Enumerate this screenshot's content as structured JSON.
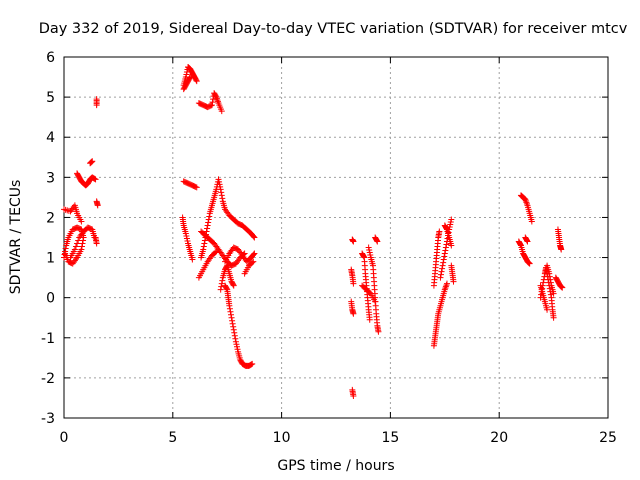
{
  "chart_data": {
    "type": "scatter",
    "title": "Day 332 of 2019, Sidereal Day-to-day VTEC variation (SDTVAR) for receiver mtcv",
    "xlabel": "GPS time / hours",
    "ylabel": "SDTVAR / TECUs",
    "xlim": [
      0,
      25
    ],
    "ylim": [
      -3,
      6
    ],
    "xticks": [
      0,
      5,
      10,
      15,
      20,
      25
    ],
    "yticks": [
      -3,
      -2,
      -1,
      0,
      1,
      2,
      3,
      4,
      5,
      6
    ],
    "xtick_labels": [
      "0",
      "5",
      "10",
      "15",
      "20",
      "25"
    ],
    "ytick_labels": [
      "-3",
      "-2",
      "-1",
      "0",
      "1",
      "2",
      "3",
      "4",
      "5",
      "6"
    ],
    "grid": true,
    "marker": "plus",
    "color": "#ff0000",
    "series": [
      {
        "name": "SDTVAR",
        "tracks": [
          [
            [
              0.0,
              2.2
            ],
            [
              0.3,
              2.15
            ],
            [
              0.5,
              2.3
            ],
            [
              0.6,
              2.1
            ],
            [
              0.8,
              1.9
            ]
          ],
          [
            [
              0.0,
              1.0
            ],
            [
              0.1,
              1.3
            ],
            [
              0.2,
              1.5
            ],
            [
              0.4,
              1.7
            ],
            [
              0.6,
              1.75
            ],
            [
              0.8,
              1.7
            ],
            [
              0.9,
              1.5
            ],
            [
              0.8,
              1.2
            ],
            [
              0.6,
              1.0
            ],
            [
              0.4,
              0.85
            ],
            [
              0.2,
              0.9
            ],
            [
              0.05,
              1.1
            ]
          ],
          [
            [
              0.3,
              1.0
            ],
            [
              0.5,
              1.2
            ],
            [
              0.7,
              1.5
            ],
            [
              0.9,
              1.65
            ],
            [
              1.1,
              1.75
            ],
            [
              1.3,
              1.7
            ],
            [
              1.4,
              1.5
            ]
          ],
          [
            [
              0.6,
              3.1
            ],
            [
              0.7,
              3.0
            ],
            [
              0.8,
              2.9
            ],
            [
              0.9,
              2.85
            ],
            [
              1.0,
              2.8
            ],
            [
              1.1,
              2.85
            ],
            [
              1.2,
              2.95
            ],
            [
              1.3,
              3.0
            ],
            [
              1.45,
              2.95
            ]
          ],
          [
            [
              1.2,
              3.35
            ],
            [
              1.3,
              3.4
            ]
          ],
          [
            [
              1.5,
              2.4
            ],
            [
              1.55,
              2.3
            ]
          ],
          [
            [
              1.45,
              1.5
            ],
            [
              1.5,
              1.35
            ]
          ],
          [
            [
              1.5,
              4.8
            ],
            [
              1.5,
              4.95
            ]
          ],
          [
            [
              5.5,
              5.3
            ],
            [
              5.6,
              5.5
            ],
            [
              5.7,
              5.75
            ],
            [
              5.8,
              5.7
            ],
            [
              5.9,
              5.6
            ],
            [
              6.0,
              5.5
            ],
            [
              6.1,
              5.4
            ]
          ],
          [
            [
              5.5,
              5.2
            ],
            [
              5.6,
              5.3
            ],
            [
              5.7,
              5.4
            ],
            [
              5.8,
              5.5
            ]
          ],
          [
            [
              6.2,
              4.85
            ],
            [
              6.4,
              4.8
            ],
            [
              6.6,
              4.75
            ],
            [
              6.8,
              4.8
            ],
            [
              6.9,
              5.1
            ],
            [
              7.0,
              5.0
            ],
            [
              7.1,
              4.85
            ],
            [
              7.25,
              4.65
            ]
          ],
          [
            [
              5.5,
              2.9
            ],
            [
              5.7,
              2.85
            ],
            [
              5.9,
              2.8
            ],
            [
              6.1,
              2.75
            ]
          ],
          [
            [
              5.45,
              2.0
            ],
            [
              5.5,
              1.8
            ],
            [
              5.6,
              1.6
            ],
            [
              5.7,
              1.35
            ],
            [
              5.8,
              1.15
            ],
            [
              5.9,
              0.95
            ]
          ],
          [
            [
              6.3,
              1.65
            ],
            [
              6.5,
              1.55
            ],
            [
              6.7,
              1.45
            ],
            [
              6.9,
              1.35
            ],
            [
              7.1,
              1.2
            ],
            [
              7.3,
              1.05
            ],
            [
              7.5,
              0.9
            ],
            [
              7.7,
              0.8
            ],
            [
              7.9,
              0.85
            ],
            [
              8.1,
              1.0
            ],
            [
              8.3,
              1.1
            ]
          ],
          [
            [
              6.3,
              1.0
            ],
            [
              6.4,
              1.2
            ],
            [
              6.5,
              1.5
            ],
            [
              6.6,
              1.8
            ],
            [
              6.7,
              2.1
            ],
            [
              6.8,
              2.3
            ],
            [
              6.9,
              2.5
            ],
            [
              7.0,
              2.7
            ],
            [
              7.1,
              2.95
            ],
            [
              7.2,
              2.7
            ],
            [
              7.3,
              2.4
            ],
            [
              7.4,
              2.2
            ],
            [
              7.6,
              2.05
            ],
            [
              7.8,
              1.95
            ],
            [
              8.0,
              1.85
            ],
            [
              8.2,
              1.8
            ],
            [
              8.4,
              1.7
            ],
            [
              8.6,
              1.6
            ],
            [
              8.75,
              1.5
            ]
          ],
          [
            [
              6.2,
              0.5
            ],
            [
              6.4,
              0.7
            ],
            [
              6.6,
              0.9
            ],
            [
              6.8,
              1.05
            ],
            [
              7.0,
              1.15
            ]
          ],
          [
            [
              7.2,
              0.2
            ],
            [
              7.3,
              0.5
            ],
            [
              7.4,
              0.7
            ],
            [
              7.5,
              0.8
            ],
            [
              7.6,
              0.6
            ],
            [
              7.7,
              0.4
            ],
            [
              7.8,
              0.3
            ]
          ],
          [
            [
              7.4,
              0.9
            ],
            [
              7.6,
              1.1
            ],
            [
              7.8,
              1.25
            ],
            [
              8.0,
              1.2
            ],
            [
              8.2,
              1.05
            ],
            [
              8.4,
              0.9
            ],
            [
              8.6,
              1.0
            ],
            [
              8.75,
              1.1
            ]
          ],
          [
            [
              7.4,
              0.3
            ],
            [
              7.5,
              0.2
            ],
            [
              7.55,
              0.0
            ],
            [
              7.6,
              -0.2
            ],
            [
              7.7,
              -0.5
            ],
            [
              7.8,
              -0.8
            ],
            [
              7.9,
              -1.1
            ],
            [
              8.0,
              -1.35
            ],
            [
              8.1,
              -1.55
            ],
            [
              8.2,
              -1.65
            ],
            [
              8.35,
              -1.7
            ],
            [
              8.5,
              -1.7
            ],
            [
              8.65,
              -1.65
            ]
          ],
          [
            [
              8.3,
              0.6
            ],
            [
              8.5,
              0.8
            ],
            [
              8.7,
              0.9
            ]
          ],
          [
            [
              13.25,
              1.45
            ],
            [
              13.3,
              1.4
            ]
          ],
          [
            [
              13.2,
              0.7
            ],
            [
              13.25,
              0.55
            ],
            [
              13.3,
              0.35
            ]
          ],
          [
            [
              13.2,
              -0.1
            ],
            [
              13.25,
              -0.3
            ],
            [
              13.3,
              -0.4
            ]
          ],
          [
            [
              13.25,
              -2.3
            ],
            [
              13.3,
              -2.45
            ]
          ],
          [
            [
              13.7,
              1.1
            ],
            [
              13.8,
              1.0
            ],
            [
              13.85,
              0.6
            ],
            [
              13.9,
              0.3
            ],
            [
              13.95,
              0.0
            ],
            [
              14.0,
              -0.3
            ],
            [
              14.05,
              -0.55
            ]
          ],
          [
            [
              14.0,
              1.25
            ],
            [
              14.1,
              1.0
            ],
            [
              14.2,
              0.8
            ],
            [
              14.25,
              0.4
            ],
            [
              14.3,
              0.0
            ],
            [
              14.35,
              -0.4
            ],
            [
              14.4,
              -0.7
            ],
            [
              14.45,
              -0.85
            ]
          ],
          [
            [
              14.3,
              1.5
            ],
            [
              14.4,
              1.4
            ]
          ],
          [
            [
              13.7,
              0.3
            ],
            [
              13.9,
              0.2
            ],
            [
              14.1,
              0.1
            ],
            [
              14.3,
              -0.1
            ]
          ],
          [
            [
              17.0,
              -1.2
            ],
            [
              17.05,
              -1.0
            ],
            [
              17.1,
              -0.8
            ],
            [
              17.15,
              -0.6
            ],
            [
              17.2,
              -0.4
            ],
            [
              17.3,
              -0.2
            ],
            [
              17.4,
              0.0
            ],
            [
              17.5,
              0.2
            ],
            [
              17.6,
              0.35
            ]
          ],
          [
            [
              17.0,
              0.3
            ],
            [
              17.05,
              0.6
            ],
            [
              17.1,
              0.9
            ],
            [
              17.15,
              1.2
            ],
            [
              17.2,
              1.5
            ],
            [
              17.25,
              1.65
            ]
          ],
          [
            [
              17.3,
              0.5
            ],
            [
              17.4,
              0.8
            ],
            [
              17.5,
              1.1
            ],
            [
              17.6,
              1.4
            ],
            [
              17.7,
              1.7
            ],
            [
              17.8,
              1.95
            ]
          ],
          [
            [
              17.5,
              1.8
            ],
            [
              17.6,
              1.7
            ],
            [
              17.7,
              1.5
            ],
            [
              17.8,
              1.3
            ]
          ],
          [
            [
              17.8,
              0.8
            ],
            [
              17.85,
              0.6
            ],
            [
              17.9,
              0.4
            ]
          ],
          [
            [
              21.0,
              2.55
            ],
            [
              21.1,
              2.5
            ],
            [
              21.2,
              2.45
            ],
            [
              21.3,
              2.3
            ],
            [
              21.4,
              2.1
            ],
            [
              21.5,
              1.9
            ]
          ],
          [
            [
              20.9,
              1.4
            ],
            [
              21.0,
              1.3
            ],
            [
              21.1,
              1.1
            ],
            [
              21.2,
              1.0
            ],
            [
              21.3,
              0.9
            ],
            [
              21.4,
              0.85
            ]
          ],
          [
            [
              21.2,
              1.5
            ],
            [
              21.3,
              1.4
            ]
          ],
          [
            [
              21.9,
              0.0
            ],
            [
              22.0,
              0.3
            ],
            [
              22.1,
              0.6
            ],
            [
              22.15,
              0.75
            ],
            [
              22.2,
              0.6
            ],
            [
              22.3,
              0.3
            ],
            [
              22.4,
              0.0
            ],
            [
              22.45,
              -0.3
            ],
            [
              22.5,
              -0.5
            ]
          ],
          [
            [
              21.9,
              0.3
            ],
            [
              22.0,
              0.1
            ],
            [
              22.1,
              -0.1
            ],
            [
              22.2,
              -0.3
            ]
          ],
          [
            [
              22.2,
              0.8
            ],
            [
              22.3,
              0.6
            ],
            [
              22.4,
              0.3
            ],
            [
              22.5,
              0.1
            ]
          ],
          [
            [
              22.7,
              1.7
            ],
            [
              22.75,
              1.5
            ],
            [
              22.8,
              1.3
            ],
            [
              22.85,
              1.2
            ]
          ],
          [
            [
              22.6,
              0.5
            ],
            [
              22.7,
              0.4
            ],
            [
              22.8,
              0.3
            ],
            [
              22.9,
              0.25
            ]
          ]
        ]
      }
    ]
  }
}
